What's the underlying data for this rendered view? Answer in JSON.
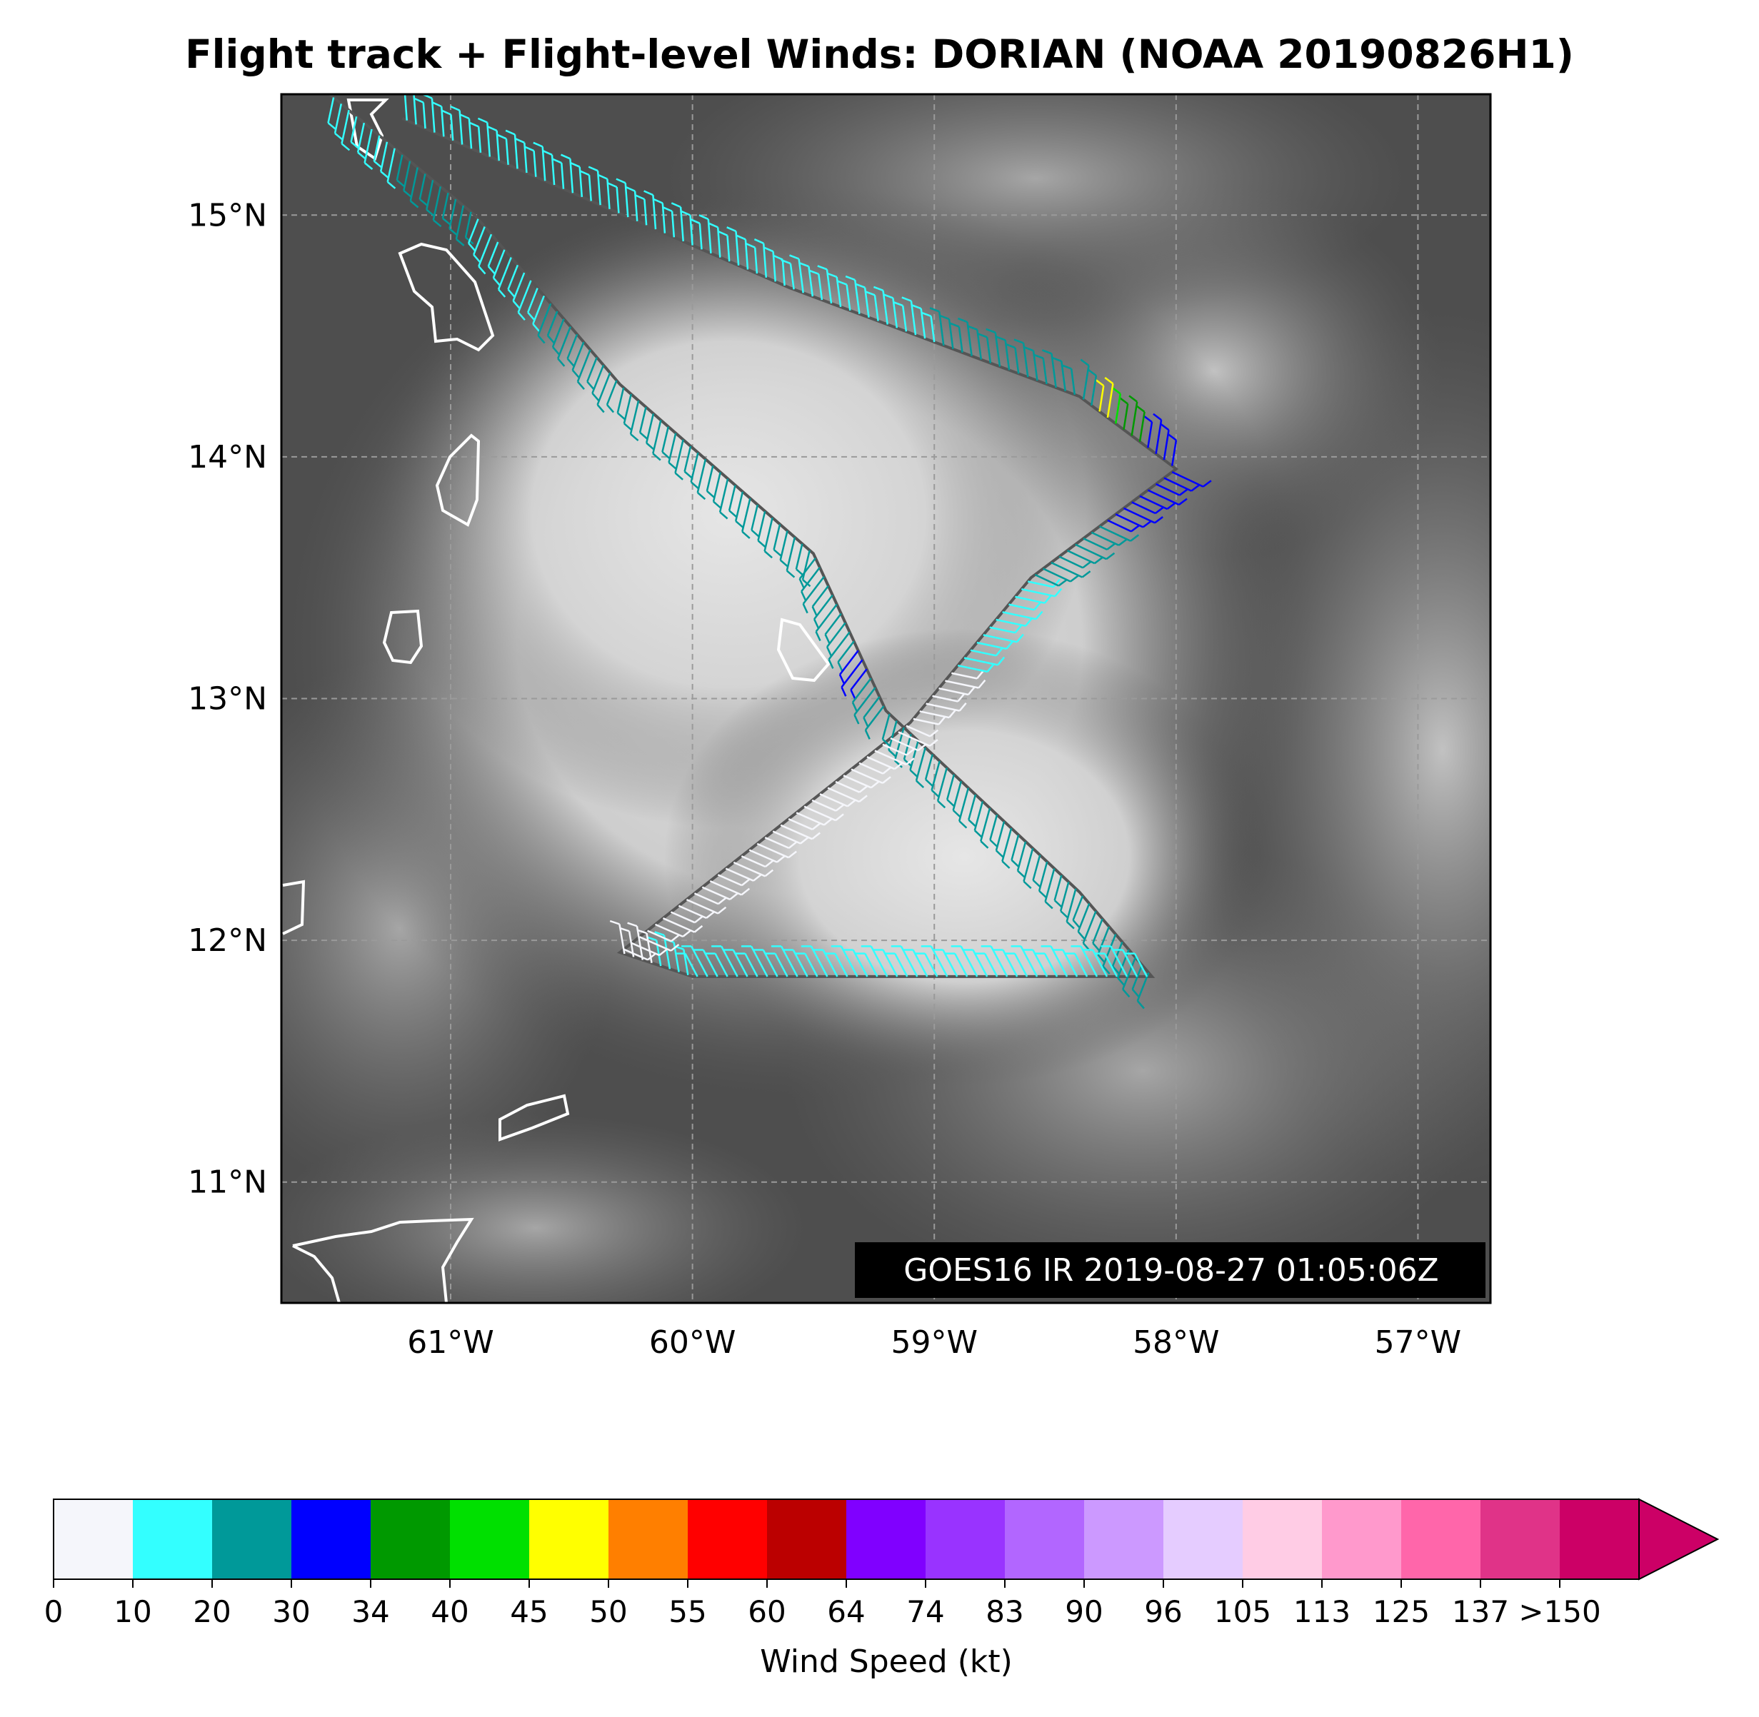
{
  "title": "Flight track + Flight-level Winds: DORIAN (NOAA 20190826H1)",
  "map": {
    "lat_range": [
      10.5,
      15.5
    ],
    "lon_range": [
      -61.7,
      -56.7
    ],
    "lat_ticks": [
      {
        "value": 15,
        "label": "15°N"
      },
      {
        "value": 14,
        "label": "14°N"
      },
      {
        "value": 13,
        "label": "13°N"
      },
      {
        "value": 12,
        "label": "12°N"
      },
      {
        "value": 11,
        "label": "11°N"
      }
    ],
    "lon_ticks": [
      {
        "value": -61,
        "label": "61°W"
      },
      {
        "value": -60,
        "label": "60°W"
      },
      {
        "value": -59,
        "label": "59°W"
      },
      {
        "value": -58,
        "label": "58°W"
      },
      {
        "value": -57,
        "label": "57°W"
      }
    ],
    "gridlines": "dashed",
    "background": "satellite infrared (grayscale)",
    "coastline_color": "#ffffff",
    "track_color": "#555555",
    "stamp": "GOES16 IR 2019-08-27 01:05:06Z"
  },
  "flight_track": [
    {
      "lon": -61.5,
      "lat": 15.5
    },
    {
      "lon": -60.9,
      "lat": 15.0
    },
    {
      "lon": -60.3,
      "lat": 14.3
    },
    {
      "lon": -59.5,
      "lat": 13.6
    },
    {
      "lon": -59.2,
      "lat": 12.95
    },
    {
      "lon": -58.4,
      "lat": 12.2
    },
    {
      "lon": -58.1,
      "lat": 11.85
    },
    {
      "lon": -60.0,
      "lat": 11.85
    },
    {
      "lon": -60.3,
      "lat": 11.95
    },
    {
      "lon": -59.1,
      "lat": 12.9
    },
    {
      "lon": -58.6,
      "lat": 13.5
    },
    {
      "lon": -58.0,
      "lat": 13.95
    },
    {
      "lon": -58.4,
      "lat": 14.25
    },
    {
      "lon": -59.6,
      "lat": 14.7
    },
    {
      "lon": -61.2,
      "lat": 15.4
    }
  ],
  "colorbar": {
    "title": "Wind Speed (kt)",
    "bins": [
      {
        "label": "0",
        "color": "#f5f6fb"
      },
      {
        "label": "10",
        "color": "#33ffff"
      },
      {
        "label": "20",
        "color": "#009999"
      },
      {
        "label": "30",
        "color": "#0000ff"
      },
      {
        "label": "34",
        "color": "#009900"
      },
      {
        "label": "40",
        "color": "#00e000"
      },
      {
        "label": "45",
        "color": "#ffff00"
      },
      {
        "label": "50",
        "color": "#ff7f00"
      },
      {
        "label": "55",
        "color": "#ff0000"
      },
      {
        "label": "60",
        "color": "#bb0000"
      },
      {
        "label": "64",
        "color": "#8000ff"
      },
      {
        "label": "74",
        "color": "#9933ff"
      },
      {
        "label": "83",
        "color": "#b266ff"
      },
      {
        "label": "90",
        "color": "#cc99ff"
      },
      {
        "label": "96",
        "color": "#e5ccff"
      },
      {
        "label": "105",
        "color": "#ffcce5"
      },
      {
        "label": "113",
        "color": "#ff99cc"
      },
      {
        "label": "125",
        "color": "#ff66aa"
      },
      {
        "label": "137",
        "color": "#e03388"
      },
      {
        "label": ">150",
        "color": "#cc0066"
      }
    ]
  }
}
